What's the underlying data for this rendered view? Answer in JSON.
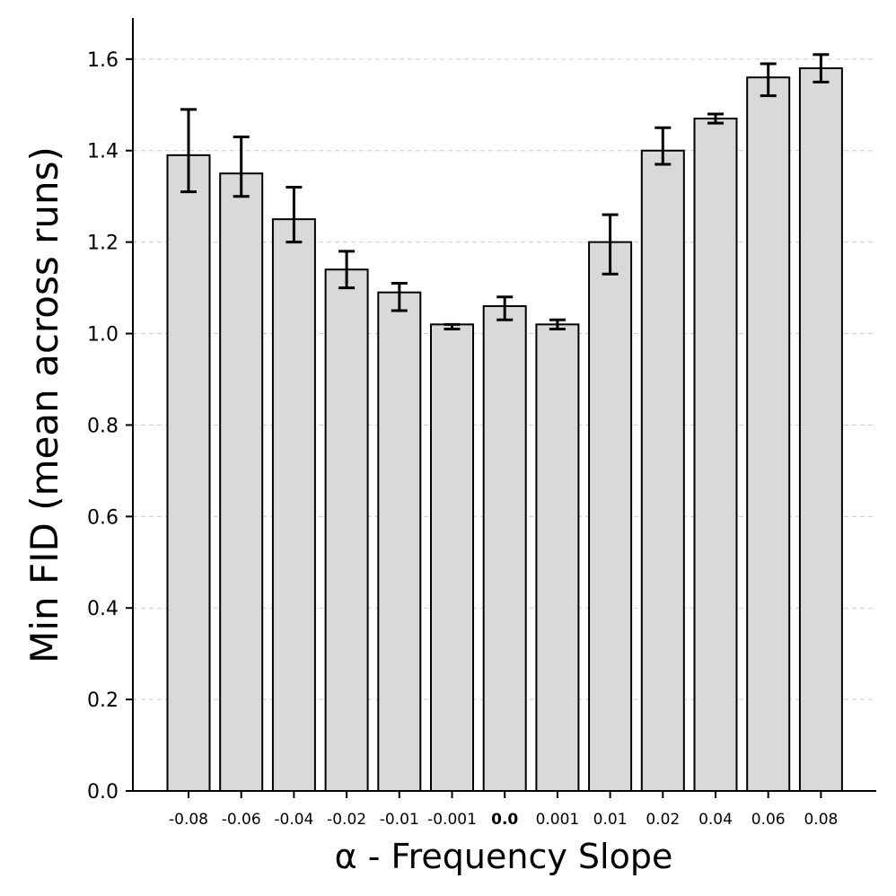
{
  "chart_data": {
    "type": "bar",
    "title": "",
    "xlabel": "α - Frequency Slope",
    "ylabel": "Min FID (mean across runs)",
    "categories": [
      "-0.08",
      "-0.06",
      "-0.04",
      "-0.02",
      "-0.01",
      "-0.001",
      "0.0",
      "0.001",
      "0.01",
      "0.02",
      "0.04",
      "0.06",
      "0.08"
    ],
    "highlight_category": "0.0",
    "values": [
      1.39,
      1.35,
      1.25,
      1.14,
      1.09,
      1.02,
      1.06,
      1.02,
      1.2,
      1.4,
      1.47,
      1.56,
      1.58
    ],
    "errors_low": [
      1.31,
      1.3,
      1.2,
      1.1,
      1.05,
      1.01,
      1.03,
      1.01,
      1.13,
      1.37,
      1.46,
      1.52,
      1.55
    ],
    "errors_high": [
      1.49,
      1.43,
      1.32,
      1.18,
      1.11,
      1.02,
      1.08,
      1.03,
      1.26,
      1.45,
      1.48,
      1.59,
      1.61
    ],
    "yticks": [
      "0.0",
      "0.2",
      "0.4",
      "0.6",
      "0.8",
      "1.0",
      "1.2",
      "1.4",
      "1.6"
    ],
    "ylim": [
      0,
      1.69
    ],
    "grid": "horizontal dashed",
    "colors": {
      "bar_fill": "#d9d9d9",
      "bar_edge": "#000000",
      "grid": "#cccccc",
      "error_bar": "#000000"
    }
  }
}
